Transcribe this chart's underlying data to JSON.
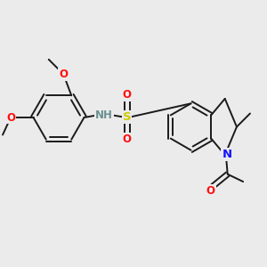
{
  "bg_color": "#ebebeb",
  "bond_color": "#1a1a1a",
  "bond_width": 1.4,
  "atom_colors": {
    "C": "#1a1a1a",
    "H": "#6b9090",
    "N": "#1414ff",
    "O": "#ff0d0d",
    "S": "#cccc00"
  },
  "fig_width": 3.0,
  "fig_height": 3.0,
  "dpi": 100
}
